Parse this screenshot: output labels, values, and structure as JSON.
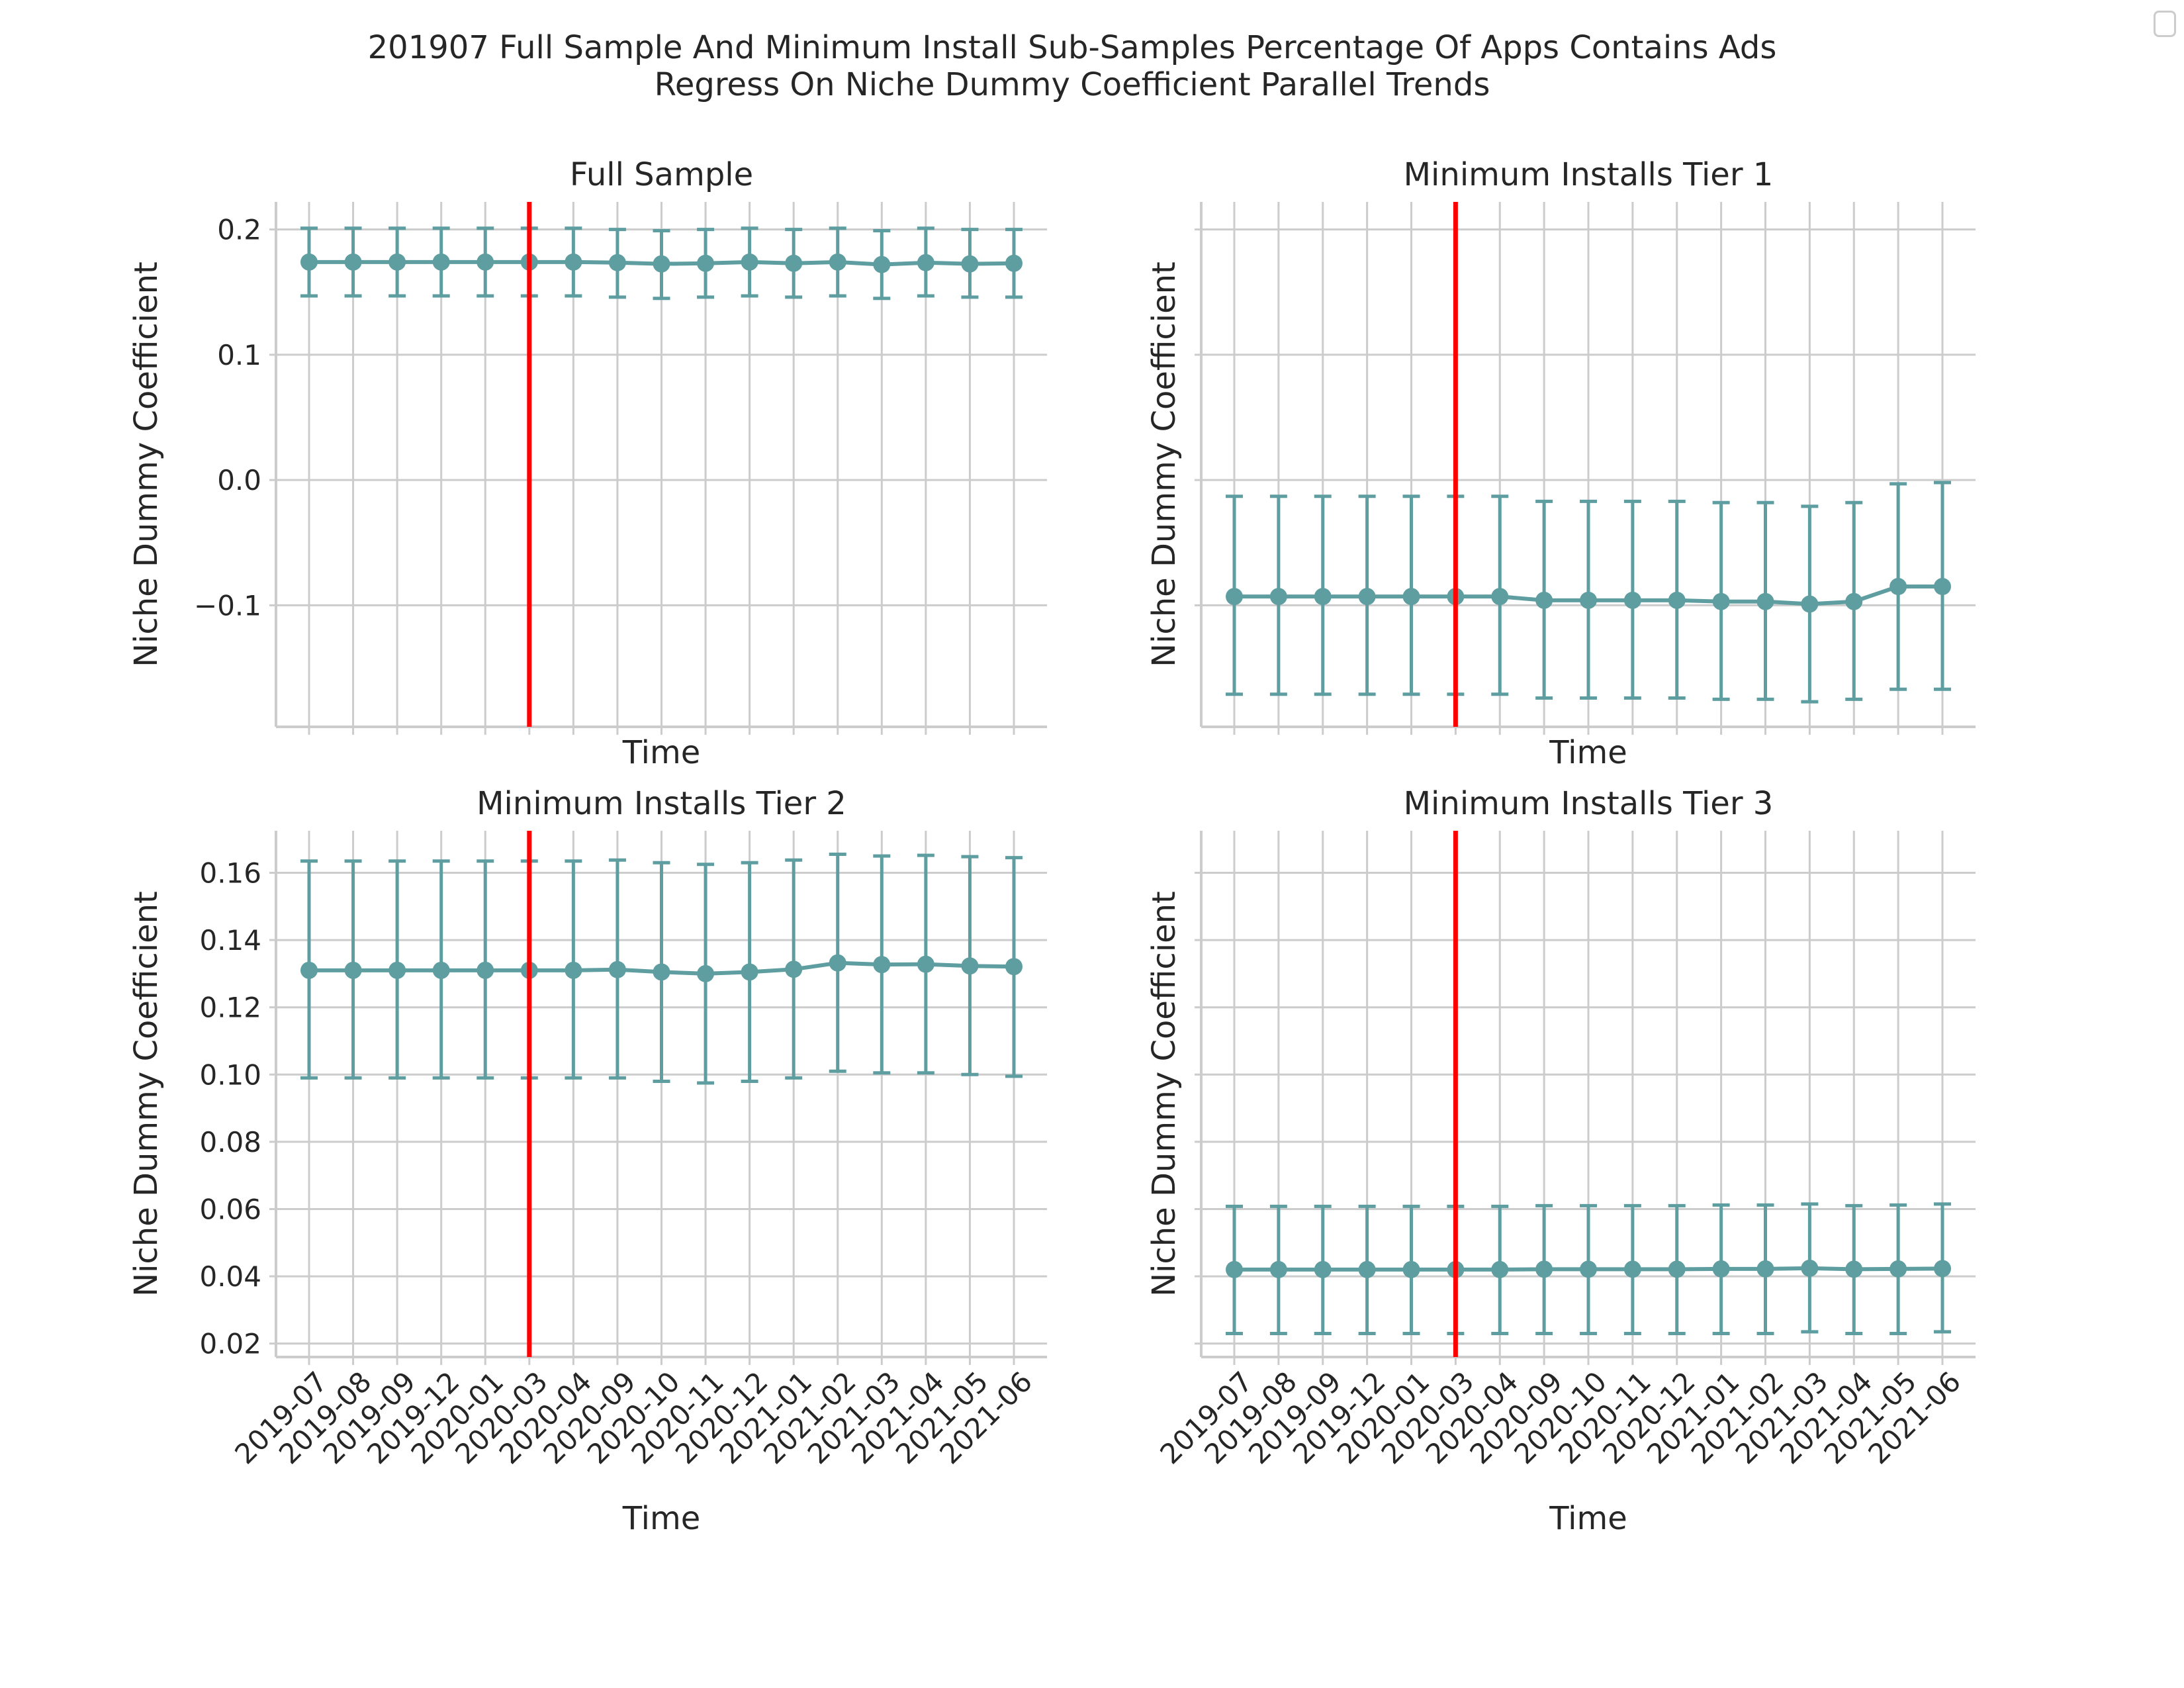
{
  "chart_data": {
    "type": "line",
    "title_lines": [
      "201907 Full Sample And Minimum Install Sub-Samples Percentage Of Apps Contains Ads",
      "Regress On Niche Dummy Coefficient Parallel Trends"
    ],
    "x": [
      "2019-07",
      "2019-08",
      "2019-09",
      "2019-12",
      "2020-01",
      "2020-03",
      "2020-04",
      "2020-09",
      "2020-10",
      "2020-11",
      "2020-12",
      "2021-01",
      "2021-02",
      "2021-03",
      "2021-04",
      "2021-05",
      "2021-06"
    ],
    "event_marker": {
      "at": "2020-03",
      "color": "#ff0000"
    },
    "series_color": "#5f9ea0",
    "grid": true,
    "legend": "top-right (empty)",
    "panels": [
      {
        "title": "Full Sample",
        "xlabel": "Time",
        "ylabel": "Niche Dummy Coefficient",
        "ylim": [
          -0.197,
          0.222
        ],
        "yticks": [
          -0.1,
          0.0,
          0.1,
          0.2
        ],
        "yticklabels": [
          "−0.1",
          "0.0",
          "0.1",
          "0.2"
        ],
        "show_xticklabels": false,
        "values": [
          0.174,
          0.174,
          0.174,
          0.174,
          0.174,
          0.174,
          0.174,
          0.1735,
          0.1725,
          0.173,
          0.174,
          0.173,
          0.174,
          0.172,
          0.1735,
          0.1725,
          0.173
        ],
        "lower": [
          0.147,
          0.147,
          0.147,
          0.147,
          0.147,
          0.147,
          0.147,
          0.146,
          0.145,
          0.146,
          0.147,
          0.146,
          0.147,
          0.145,
          0.147,
          0.146,
          0.146
        ],
        "upper": [
          0.201,
          0.201,
          0.201,
          0.201,
          0.201,
          0.201,
          0.201,
          0.2,
          0.199,
          0.2,
          0.201,
          0.2,
          0.201,
          0.199,
          0.201,
          0.2,
          0.2
        ]
      },
      {
        "title": "Minimum Installs Tier 1",
        "xlabel": "Time",
        "ylabel": "Niche Dummy Coefficient",
        "ylim": [
          -0.197,
          0.222
        ],
        "yticks": [
          -0.1,
          0.0,
          0.1,
          0.2
        ],
        "yticklabels": [
          "",
          "",
          "",
          ""
        ],
        "show_xticklabels": false,
        "values": [
          -0.093,
          -0.093,
          -0.093,
          -0.093,
          -0.093,
          -0.093,
          -0.093,
          -0.096,
          -0.096,
          -0.096,
          -0.096,
          -0.097,
          -0.097,
          -0.099,
          -0.097,
          -0.085,
          -0.085
        ],
        "lower": [
          -0.171,
          -0.171,
          -0.171,
          -0.171,
          -0.171,
          -0.171,
          -0.171,
          -0.174,
          -0.174,
          -0.174,
          -0.174,
          -0.175,
          -0.175,
          -0.177,
          -0.175,
          -0.167,
          -0.167
        ],
        "upper": [
          -0.013,
          -0.013,
          -0.013,
          -0.013,
          -0.013,
          -0.013,
          -0.013,
          -0.017,
          -0.017,
          -0.017,
          -0.017,
          -0.018,
          -0.018,
          -0.021,
          -0.018,
          -0.003,
          -0.002
        ]
      },
      {
        "title": "Minimum Installs Tier 2",
        "xlabel": "Time",
        "ylabel": "Niche Dummy Coefficient",
        "ylim": [
          0.016,
          0.1725
        ],
        "yticks": [
          0.02,
          0.04,
          0.06,
          0.08,
          0.1,
          0.12,
          0.14,
          0.16
        ],
        "yticklabels": [
          "0.02",
          "0.04",
          "0.06",
          "0.08",
          "0.10",
          "0.12",
          "0.14",
          "0.16"
        ],
        "show_xticklabels": true,
        "values": [
          0.131,
          0.131,
          0.131,
          0.131,
          0.131,
          0.131,
          0.131,
          0.1312,
          0.1305,
          0.13,
          0.1305,
          0.1313,
          0.1332,
          0.1327,
          0.1328,
          0.1323,
          0.1321
        ],
        "lower": [
          0.099,
          0.099,
          0.099,
          0.099,
          0.099,
          0.099,
          0.099,
          0.099,
          0.098,
          0.0975,
          0.098,
          0.099,
          0.101,
          0.1005,
          0.1005,
          0.1,
          0.0995
        ],
        "upper": [
          0.1635,
          0.1635,
          0.1635,
          0.1635,
          0.1635,
          0.1635,
          0.1635,
          0.1638,
          0.163,
          0.1625,
          0.163,
          0.1638,
          0.1655,
          0.165,
          0.1652,
          0.1648,
          0.1645
        ]
      },
      {
        "title": "Minimum Installs Tier 3",
        "xlabel": "Time",
        "ylabel": "Niche Dummy Coefficient",
        "ylim": [
          0.016,
          0.1725
        ],
        "yticks": [
          0.02,
          0.04,
          0.06,
          0.08,
          0.1,
          0.12,
          0.14,
          0.16
        ],
        "yticklabels": [
          "",
          "",
          "",
          "",
          "",
          "",
          "",
          ""
        ],
        "show_xticklabels": true,
        "values": [
          0.042,
          0.042,
          0.042,
          0.042,
          0.042,
          0.042,
          0.042,
          0.0421,
          0.0421,
          0.0421,
          0.0421,
          0.0422,
          0.0422,
          0.0424,
          0.0421,
          0.0422,
          0.0423
        ],
        "lower": [
          0.023,
          0.023,
          0.023,
          0.023,
          0.023,
          0.023,
          0.023,
          0.023,
          0.023,
          0.023,
          0.023,
          0.023,
          0.023,
          0.0235,
          0.023,
          0.023,
          0.0235
        ],
        "upper": [
          0.0608,
          0.0608,
          0.0608,
          0.0608,
          0.0608,
          0.0608,
          0.0608,
          0.061,
          0.061,
          0.061,
          0.061,
          0.0612,
          0.0612,
          0.0615,
          0.061,
          0.0612,
          0.0615
        ]
      }
    ]
  }
}
